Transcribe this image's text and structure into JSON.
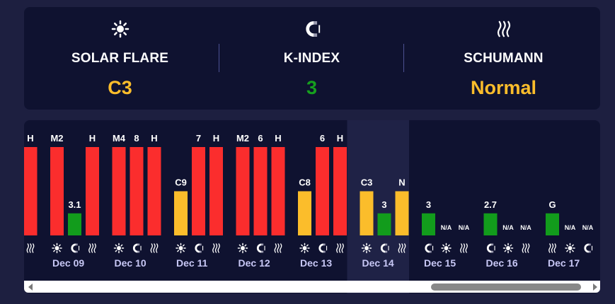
{
  "summary": {
    "metrics": [
      {
        "icon": "sun-icon",
        "label": "SOLAR FLARE",
        "value": "C3",
        "color": "#fbbd2b"
      },
      {
        "icon": "magnet-icon",
        "label": "K-INDEX",
        "value": "3",
        "color": "#16a01e"
      },
      {
        "icon": "waves-icon",
        "label": "SCHUMANN",
        "value": "Normal",
        "color": "#fbbd2b"
      }
    ]
  },
  "colors": {
    "red": "#fb2d2d",
    "orange": "#fbbd2b",
    "green": "#129c1c",
    "date": "#c8c8f6",
    "icon": "#ffffff",
    "highlight": "#1f2246"
  },
  "chart_data": {
    "type": "bar",
    "days": [
      {
        "date": "",
        "bars": [
          {
            "label": "",
            "level": 1.0,
            "color": "red"
          },
          {
            "label": "",
            "level": 1.0,
            "color": "red"
          },
          {
            "label": "H",
            "level": 1.0,
            "color": "red"
          }
        ],
        "icons": [
          "sun-icon",
          "magnet-icon",
          "waves-icon"
        ]
      },
      {
        "date": "Dec 09",
        "bars": [
          {
            "label": "M2",
            "level": 1.0,
            "color": "red"
          },
          {
            "label": "3.1",
            "level": 0.25,
            "color": "green"
          },
          {
            "label": "H",
            "level": 1.0,
            "color": "red"
          }
        ],
        "icons": [
          "sun-icon",
          "magnet-icon",
          "waves-icon"
        ]
      },
      {
        "date": "Dec 10",
        "bars": [
          {
            "label": "M4",
            "level": 1.0,
            "color": "red"
          },
          {
            "label": "8",
            "level": 1.0,
            "color": "red"
          },
          {
            "label": "H",
            "level": 1.0,
            "color": "red"
          }
        ],
        "icons": [
          "sun-icon",
          "magnet-icon",
          "waves-icon"
        ]
      },
      {
        "date": "Dec 11",
        "bars": [
          {
            "label": "C9",
            "level": 0.5,
            "color": "orange"
          },
          {
            "label": "7",
            "level": 1.0,
            "color": "red"
          },
          {
            "label": "H",
            "level": 1.0,
            "color": "red"
          }
        ],
        "icons": [
          "sun-icon",
          "magnet-icon",
          "waves-icon"
        ]
      },
      {
        "date": "Dec 12",
        "bars": [
          {
            "label": "M2",
            "level": 1.0,
            "color": "red"
          },
          {
            "label": "6",
            "level": 1.0,
            "color": "red"
          },
          {
            "label": "H",
            "level": 1.0,
            "color": "red"
          }
        ],
        "icons": [
          "sun-icon",
          "magnet-icon",
          "waves-icon"
        ]
      },
      {
        "date": "Dec 13",
        "bars": [
          {
            "label": "C8",
            "level": 0.5,
            "color": "orange"
          },
          {
            "label": "6",
            "level": 1.0,
            "color": "red"
          },
          {
            "label": "H",
            "level": 1.0,
            "color": "red"
          }
        ],
        "icons": [
          "sun-icon",
          "magnet-icon",
          "waves-icon"
        ]
      },
      {
        "date": "Dec 14",
        "highlight": true,
        "bars": [
          {
            "label": "C3",
            "level": 0.5,
            "color": "orange"
          },
          {
            "label": "3",
            "level": 0.25,
            "color": "green"
          },
          {
            "label": "N",
            "level": 0.5,
            "color": "orange"
          }
        ],
        "icons": [
          "sun-icon",
          "magnet-icon",
          "waves-icon"
        ]
      },
      {
        "date": "Dec 15",
        "bars": [
          {
            "label": "3",
            "level": 0.25,
            "color": "green"
          },
          {
            "label": "N/A",
            "level": 0,
            "color": "none"
          },
          {
            "label": "N/A",
            "level": 0,
            "color": "none"
          }
        ],
        "icons": [
          "magnet-icon",
          "sun-icon",
          "waves-icon"
        ]
      },
      {
        "date": "Dec 16",
        "bars": [
          {
            "label": "2.7",
            "level": 0.25,
            "color": "green"
          },
          {
            "label": "N/A",
            "level": 0,
            "color": "none"
          },
          {
            "label": "N/A",
            "level": 0,
            "color": "none"
          }
        ],
        "icons": [
          "magnet-icon",
          "sun-icon",
          "waves-icon"
        ]
      },
      {
        "date": "Dec 17",
        "bars": [
          {
            "label": "G",
            "level": 0.25,
            "color": "green"
          },
          {
            "label": "N/A",
            "level": 0,
            "color": "none"
          },
          {
            "label": "N/A",
            "level": 0,
            "color": "none"
          }
        ],
        "icons": [
          "waves-icon",
          "sun-icon",
          "magnet-icon"
        ]
      }
    ]
  },
  "scrollbar": {
    "left_arrow": "scroll-left-icon",
    "right_arrow": "scroll-right-icon",
    "position": 0.98,
    "visible_fraction": 0.27
  }
}
